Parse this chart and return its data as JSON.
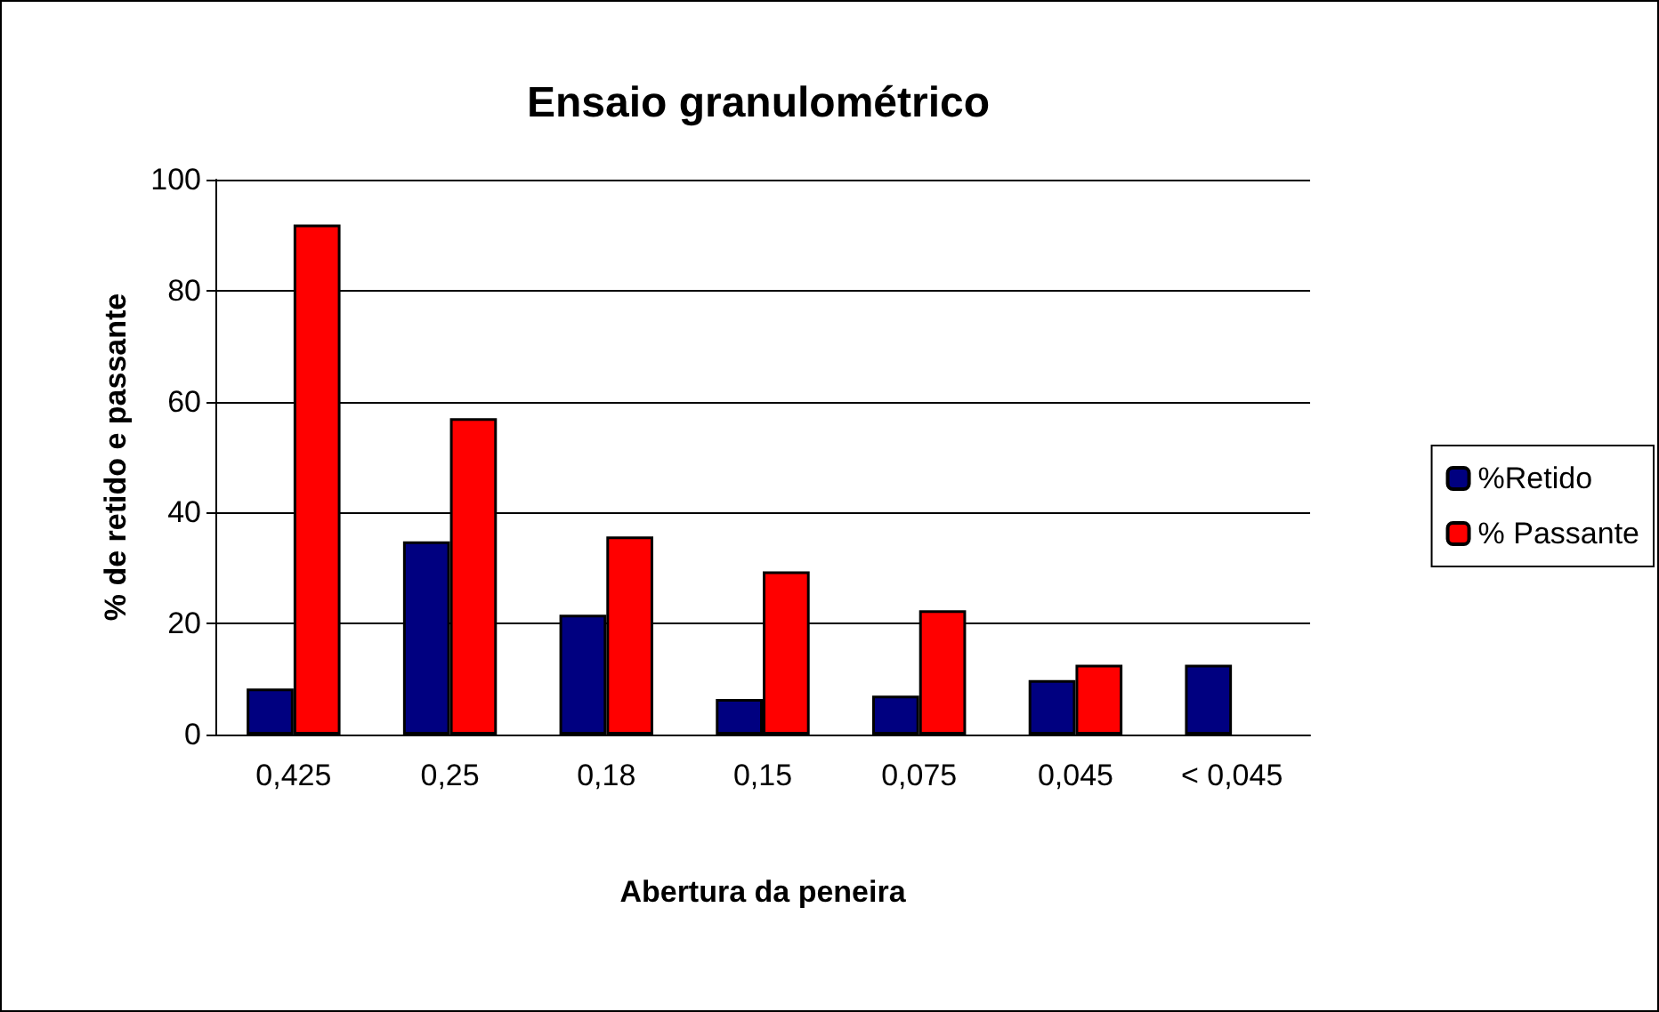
{
  "chart_data": {
    "type": "bar",
    "title": "Ensaio granulométrico",
    "xlabel": "Abertura da peneira",
    "ylabel": "% de retido e passante",
    "categories": [
      "0,425",
      "0,25",
      "0,18",
      "0,15",
      "0,075",
      "0,045",
      "< 0,045"
    ],
    "series": [
      {
        "name": "%Retido",
        "color": "#000080",
        "values": [
          8.3,
          34.8,
          21.6,
          6.4,
          7.0,
          9.8,
          12.6
        ]
      },
      {
        "name": "% Passante",
        "color": "#ff0000",
        "values": [
          91.9,
          57.0,
          35.7,
          29.4,
          22.4,
          12.6,
          null
        ]
      }
    ],
    "ylim": [
      0,
      100
    ],
    "yticks": [
      0,
      20,
      40,
      60,
      80,
      100
    ],
    "grid": "y",
    "legend": "right"
  }
}
